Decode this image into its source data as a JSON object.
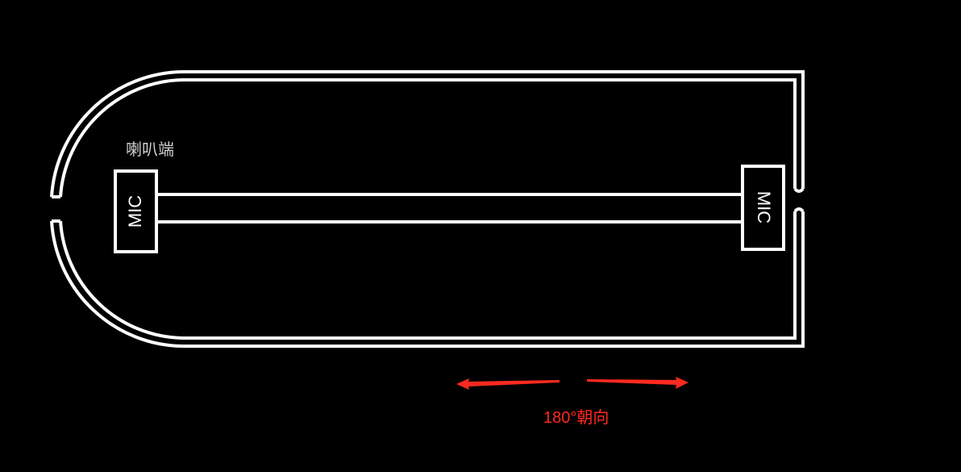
{
  "speaker_label": "喇叭端",
  "mic_left_label": "MIC",
  "mic_right_label": "MIC",
  "direction_label": "180°朝向",
  "colors": {
    "background": "#000000",
    "outline": "#ffffff",
    "arrow": "#ff2a1f",
    "speaker_text": "#cfcfcf"
  }
}
